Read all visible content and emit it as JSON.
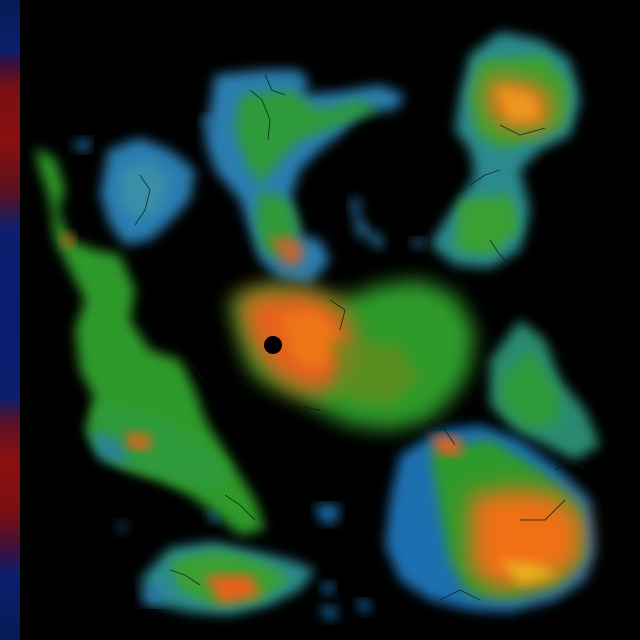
{
  "map": {
    "style": "fractal terrain heightmap",
    "background_color": "#000000",
    "palette": {
      "lowland": "#1f6fb0",
      "midland": "#2f9a2a",
      "highland": "#e8601a",
      "peak": "#f0a020",
      "side_strip_blue": "#0b1f6e",
      "side_strip_red": "#8a1010"
    },
    "regions": [
      "north-central-landmass",
      "northeast-island",
      "northwest-island",
      "west-strip-landmass",
      "central-landmass",
      "east-landmass",
      "south-landmass",
      "southwest-island"
    ]
  }
}
